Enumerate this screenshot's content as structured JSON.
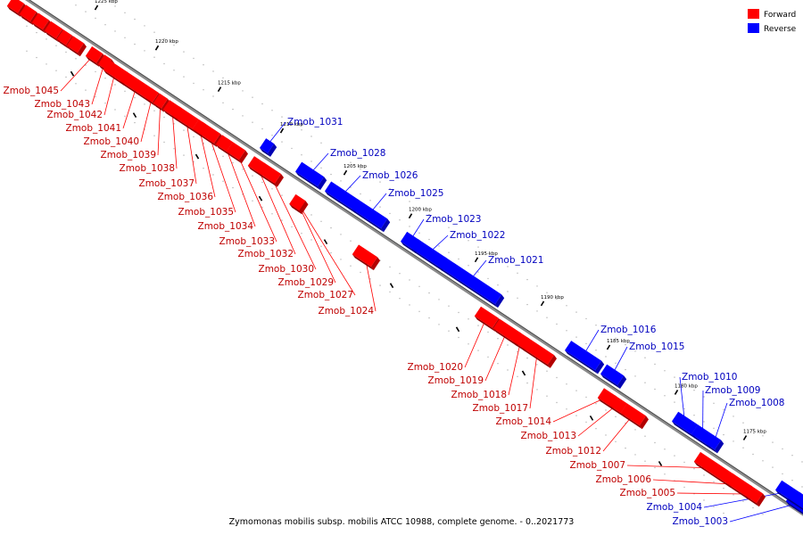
{
  "caption": "Zymomonas mobilis subsp. mobilis ATCC 10988, complete genome. - 0..2021773",
  "legend": [
    {
      "label": "Forward",
      "color": "#ff0000"
    },
    {
      "label": "Reverse",
      "color": "#0000ff"
    }
  ],
  "ticks": [
    {
      "label": "1225 kbp",
      "kbp": 1225
    },
    {
      "label": "1220 kbp",
      "kbp": 1220
    },
    {
      "label": "1215 kbp",
      "kbp": 1215
    },
    {
      "label": "1210 kbp",
      "kbp": 1210
    },
    {
      "label": "1205 kbp",
      "kbp": 1205
    },
    {
      "label": "1200 kbp",
      "kbp": 1200
    },
    {
      "label": "1195 kbp",
      "kbp": 1195
    },
    {
      "label": "1190 kbp",
      "kbp": 1190
    },
    {
      "label": "1185 kbp",
      "kbp": 1185
    },
    {
      "label": "1180 kbp",
      "kbp": 1180
    },
    {
      "label": "1175 kbp",
      "kbp": 1175
    }
  ],
  "genes": [
    {
      "name": "Zmob_1045",
      "strand": "forward"
    },
    {
      "name": "Zmob_1043",
      "strand": "forward"
    },
    {
      "name": "Zmob_1042",
      "strand": "forward"
    },
    {
      "name": "Zmob_1041",
      "strand": "forward"
    },
    {
      "name": "Zmob_1040",
      "strand": "forward"
    },
    {
      "name": "Zmob_1039",
      "strand": "forward"
    },
    {
      "name": "Zmob_1038",
      "strand": "forward"
    },
    {
      "name": "Zmob_1037",
      "strand": "forward"
    },
    {
      "name": "Zmob_1036",
      "strand": "forward"
    },
    {
      "name": "Zmob_1035",
      "strand": "forward"
    },
    {
      "name": "Zmob_1034",
      "strand": "forward"
    },
    {
      "name": "Zmob_1033",
      "strand": "forward"
    },
    {
      "name": "Zmob_1032",
      "strand": "forward"
    },
    {
      "name": "Zmob_1031",
      "strand": "reverse"
    },
    {
      "name": "Zmob_1030",
      "strand": "forward"
    },
    {
      "name": "Zmob_1029",
      "strand": "forward"
    },
    {
      "name": "Zmob_1028",
      "strand": "reverse"
    },
    {
      "name": "Zmob_1027",
      "strand": "forward"
    },
    {
      "name": "Zmob_1026",
      "strand": "reverse"
    },
    {
      "name": "Zmob_1025",
      "strand": "reverse"
    },
    {
      "name": "Zmob_1024",
      "strand": "forward"
    },
    {
      "name": "Zmob_1023",
      "strand": "reverse"
    },
    {
      "name": "Zmob_1022",
      "strand": "reverse"
    },
    {
      "name": "Zmob_1021",
      "strand": "reverse"
    },
    {
      "name": "Zmob_1020",
      "strand": "forward"
    },
    {
      "name": "Zmob_1019",
      "strand": "forward"
    },
    {
      "name": "Zmob_1018",
      "strand": "forward"
    },
    {
      "name": "Zmob_1017",
      "strand": "forward"
    },
    {
      "name": "Zmob_1016",
      "strand": "reverse"
    },
    {
      "name": "Zmob_1015",
      "strand": "reverse"
    },
    {
      "name": "Zmob_1014",
      "strand": "forward"
    },
    {
      "name": "Zmob_1013",
      "strand": "forward"
    },
    {
      "name": "Zmob_1012",
      "strand": "forward"
    },
    {
      "name": "Zmob_1010",
      "strand": "reverse"
    },
    {
      "name": "Zmob_1009",
      "strand": "reverse"
    },
    {
      "name": "Zmob_1008",
      "strand": "reverse"
    },
    {
      "name": "Zmob_1007",
      "strand": "forward"
    },
    {
      "name": "Zmob_1006",
      "strand": "forward"
    },
    {
      "name": "Zmob_1005",
      "strand": "forward"
    },
    {
      "name": "Zmob_1004",
      "strand": "reverse"
    },
    {
      "name": "Zmob_1003",
      "strand": "reverse"
    }
  ]
}
